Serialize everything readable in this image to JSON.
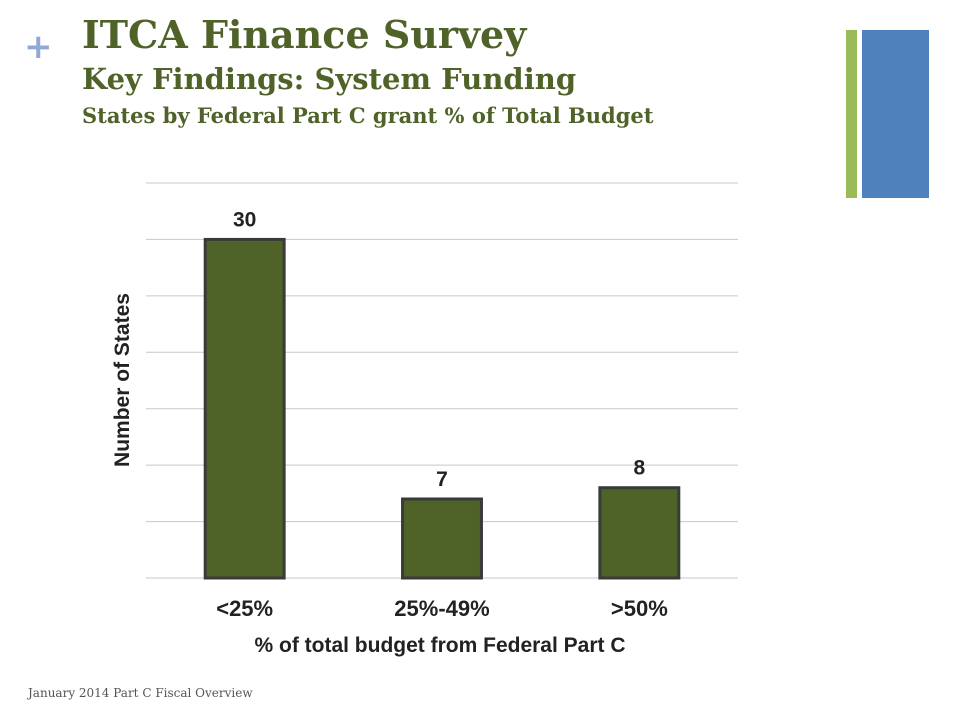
{
  "slide": {
    "plus_glyph": "+",
    "title": "ITCA Finance Survey",
    "subtitle": "Key Findings:  System Funding",
    "subtitle2": "States by Federal Part C grant % of Total Budget",
    "footer": "January 2014 Part C Fiscal Overview"
  },
  "colors": {
    "title": "#4f6228",
    "bar_fill": "#4f6228",
    "bar_stroke": "#3a3a3a",
    "accent_green": "#9bbb59",
    "accent_blue": "#4f81bd",
    "plus": "#8fa9d6"
  },
  "chart_data": {
    "type": "bar",
    "categories": [
      "<25%",
      "25%-49%",
      ">50%"
    ],
    "values": [
      30,
      7,
      8
    ],
    "data_labels": [
      "30",
      "7",
      "8"
    ],
    "title": "",
    "xlabel": "% of total budget from Federal Part C",
    "ylabel": "Number of States",
    "ylim": [
      0,
      35
    ],
    "grid": true,
    "legend": "none"
  }
}
